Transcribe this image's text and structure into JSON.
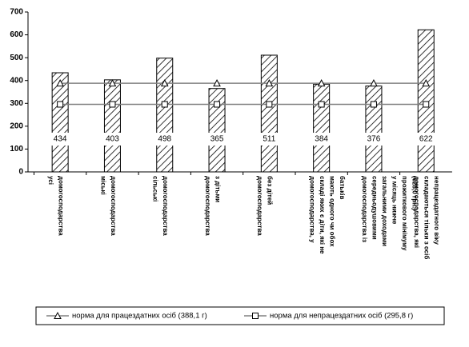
{
  "chart_data": {
    "type": "bar",
    "categories": [
      [
        "усі",
        "домогосподарства"
      ],
      [
        "міські",
        "домогосподарства"
      ],
      [
        "сільські",
        "домогосподарства"
      ],
      [
        "домогосподарства",
        "з дітьми"
      ],
      [
        "домогосподарства",
        "без дітей"
      ],
      [
        "домогосподарства, у",
        "складі яких є діти, які не",
        "мають одного чи обох",
        "батьків"
      ],
      [
        "домогосподарства із",
        "середньодушовими",
        "загальними доходами",
        "у місяць нижче",
        "прожиткового мінімуму",
        "(628,0 грн.)"
      ],
      [
        "домогосподарства, які",
        "складаються тільки з осіб",
        "непрацездатного віку"
      ]
    ],
    "values": [
      434,
      403,
      498,
      365,
      511,
      384,
      376,
      622
    ],
    "color": "#ffffff",
    "series": [
      {
        "name": "норма для працездатних осіб (388,1 г)",
        "color": "#808080",
        "marker": "triangle",
        "values": [
          388.1,
          388.1,
          388.1,
          388.1,
          388.1,
          388.1,
          388.1,
          388.1
        ]
      },
      {
        "name": "норма для непрацездатних осіб (295,8 г)",
        "color": "#808080",
        "marker": "square",
        "values": [
          295.8,
          295.8,
          295.8,
          295.8,
          295.8,
          295.8,
          295.8,
          295.8
        ]
      }
    ],
    "ylim": [
      0,
      700
    ],
    "yticks": [
      0,
      100,
      200,
      300,
      400,
      500,
      600,
      700
    ],
    "grid": false
  }
}
